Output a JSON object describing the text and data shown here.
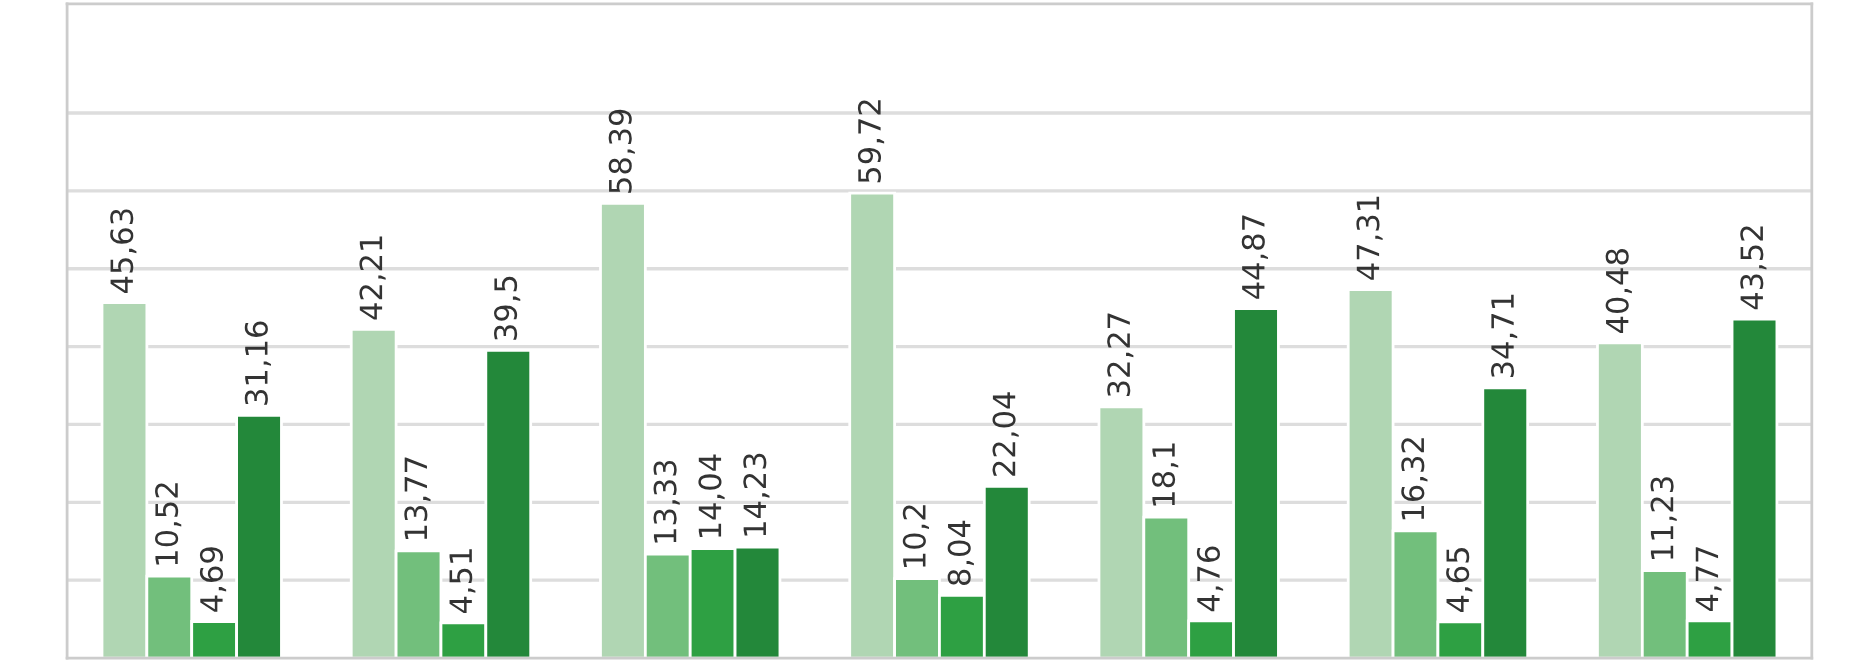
{
  "chart_data": {
    "type": "bar",
    "categories": [
      null,
      null,
      null,
      null,
      null,
      null,
      null
    ],
    "series": [
      {
        "color": "#b0d6b3",
        "values": [
          45.63,
          42.21,
          58.39,
          59.72,
          32.27,
          47.31,
          40.48
        ],
        "value_labels": [
          "45,63",
          "42,21",
          "58,39",
          "59,72",
          "32,27",
          "47,31",
          "40,48"
        ]
      },
      {
        "color": "#72bf7c",
        "values": [
          10.52,
          13.77,
          13.33,
          10.2,
          18.1,
          16.32,
          11.23
        ],
        "value_labels": [
          "10,52",
          "13,77",
          "13,33",
          "10,2",
          "18,1",
          "16,32",
          "11,23"
        ]
      },
      {
        "color": "#2ea043",
        "values": [
          4.69,
          4.51,
          14.04,
          8.04,
          4.76,
          4.65,
          4.77
        ],
        "value_labels": [
          "4,69",
          "4,51",
          "14,04",
          "8,04",
          "4,76",
          "4,65",
          "4,77"
        ]
      },
      {
        "color": "#23883a",
        "values": [
          31.16,
          39.5,
          14.23,
          22.04,
          44.87,
          34.71,
          43.52
        ],
        "value_labels": [
          "31,16",
          "39,5",
          "14,23",
          "22,04",
          "44,87",
          "34,71",
          "43,52"
        ]
      }
    ],
    "ylim": [
      0,
      84
    ],
    "yticks": [
      {
        "value": 10,
        "label": null
      },
      {
        "value": 20,
        "label": null
      },
      {
        "value": 30,
        "label": null
      },
      {
        "value": 40,
        "label": null
      },
      {
        "value": 50,
        "label": null
      },
      {
        "value": 60,
        "label": null
      },
      {
        "value": 70,
        "label": null
      }
    ],
    "grid": "y"
  }
}
